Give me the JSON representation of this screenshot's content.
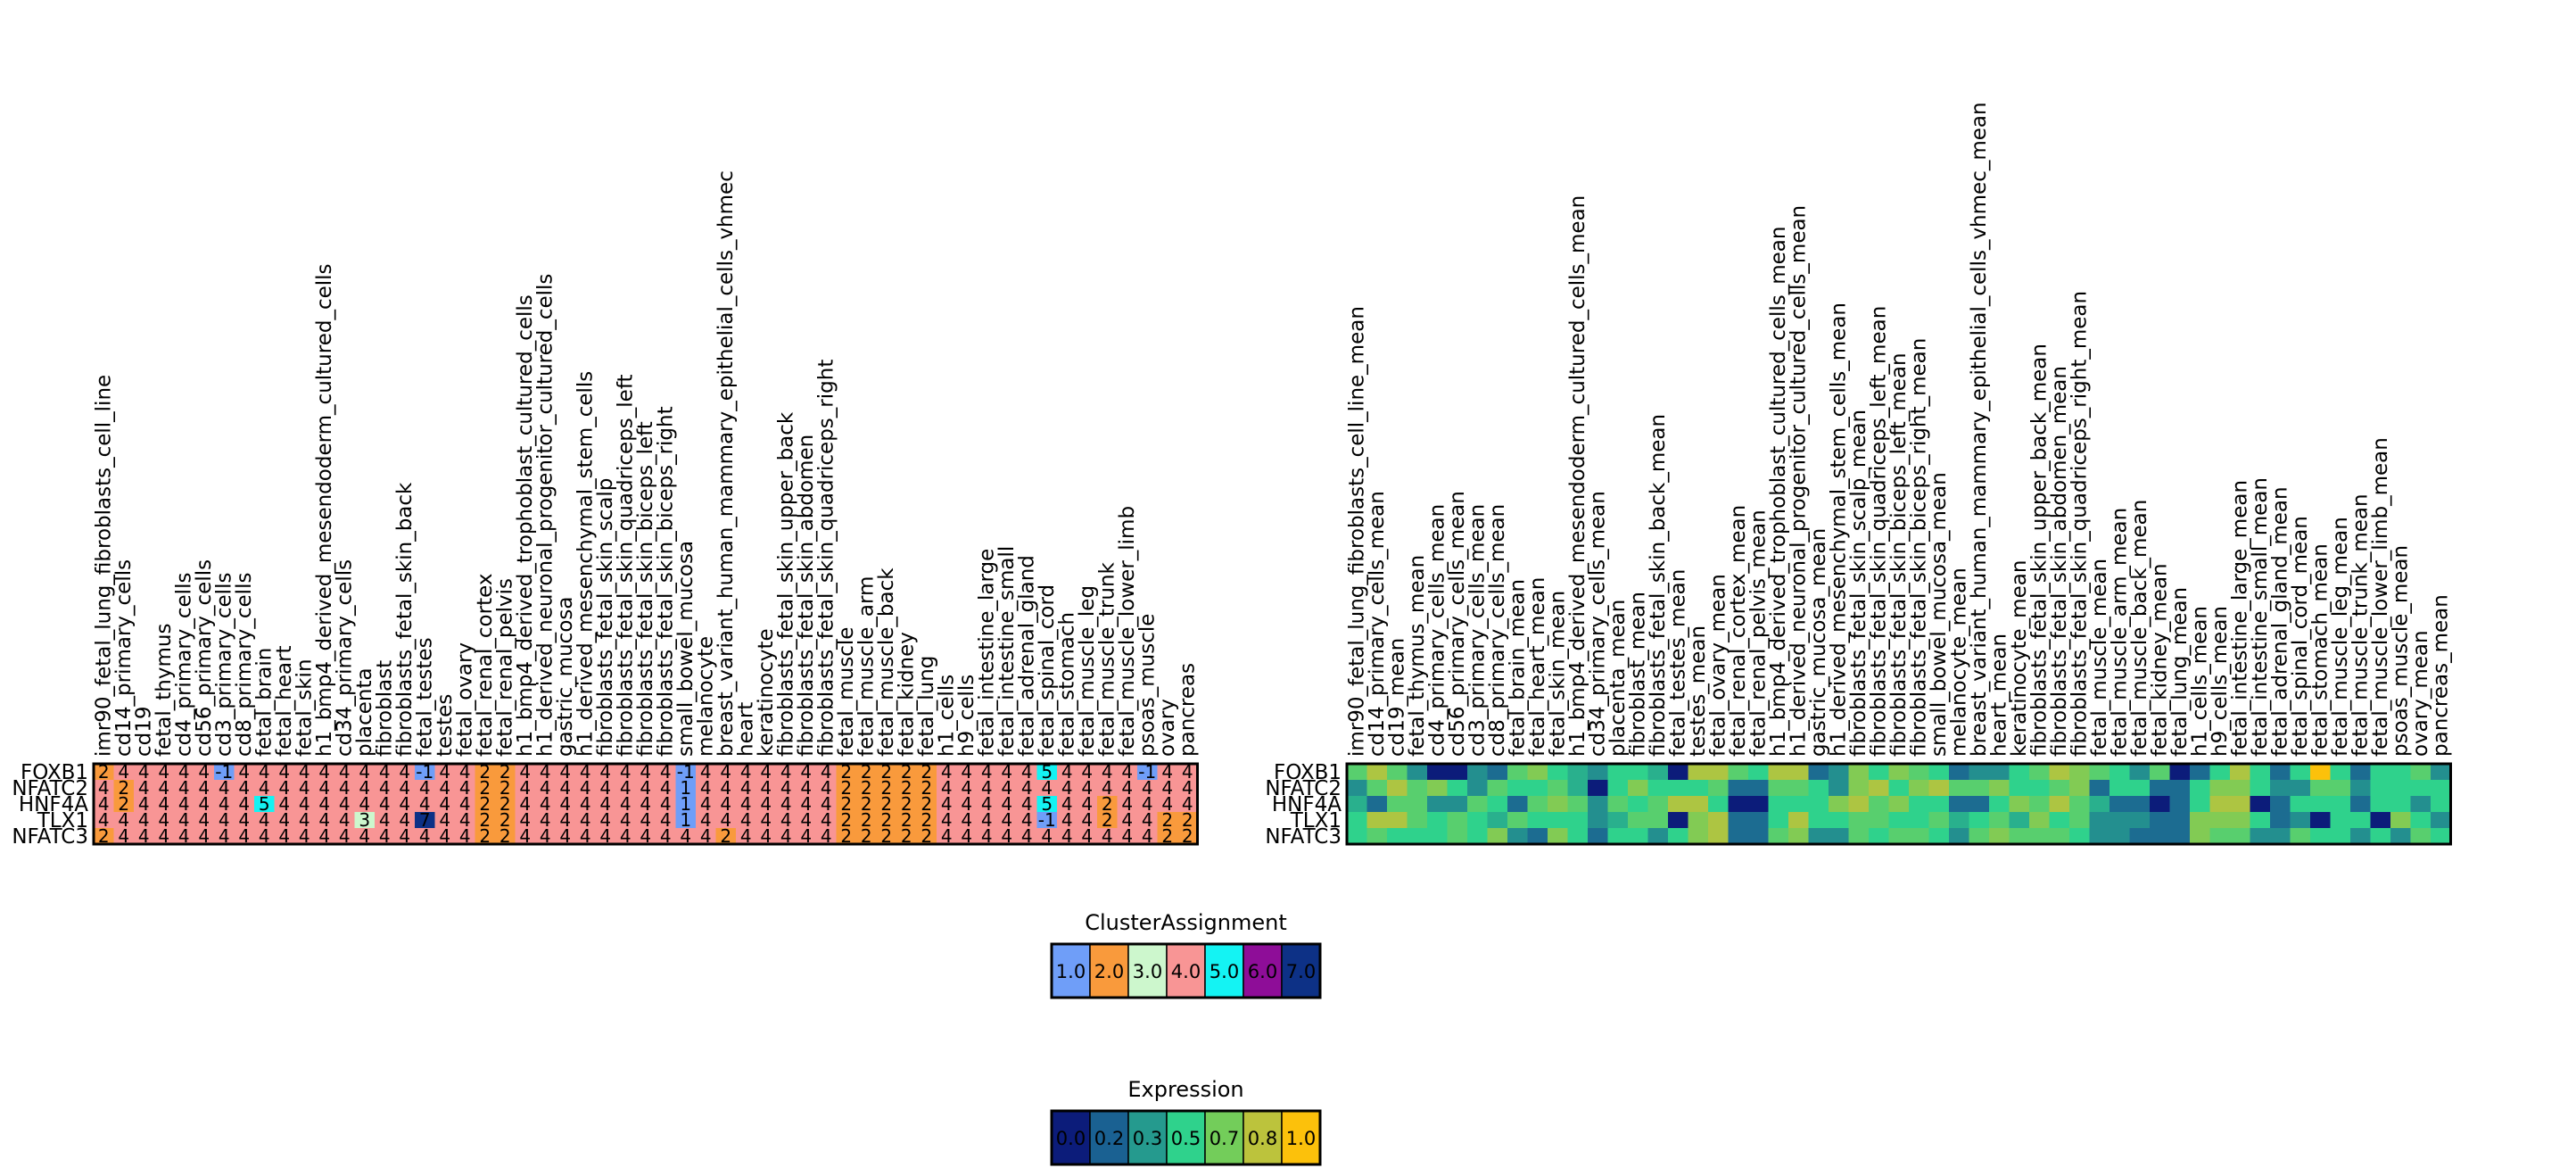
{
  "chart_data": [
    {
      "type": "heatmap",
      "title": "",
      "rows": [
        "FOXB1",
        "NFATC2",
        "HNF4A",
        "TLX1",
        "NFATC3"
      ],
      "columns": [
        "imr90_fetal_lung_fibroblasts_cell_line",
        "cd14_primary_cells",
        "cd19",
        "fetal_thymus",
        "cd4_primary_cells",
        "cd56_primary_cells",
        "cd3_primary_cells",
        "cd8_primary_cells",
        "fetal_brain",
        "fetal_heart",
        "fetal_skin",
        "h1_bmp4_derived_mesendoderm_cultured_cells",
        "cd34_primary_cells",
        "placenta",
        "fibroblast",
        "fibroblasts_fetal_skin_back",
        "fetal_testes",
        "testes",
        "fetal_ovary",
        "fetal_renal_cortex",
        "fetal_renal_pelvis",
        "h1_bmp4_derived_trophoblast_cultured_cells",
        "h1_derived_neuronal_progenitor_cultured_cells",
        "gastric_mucosa",
        "h1_derived_mesenchymal_stem_cells",
        "fibroblasts_fetal_skin_scalp",
        "fibroblasts_fetal_skin_quadriceps_left",
        "fibroblasts_fetal_skin_biceps_left",
        "fibroblasts_fetal_skin_biceps_right",
        "small_bowel_mucosa",
        "melanocyte",
        "breast_variant_human_mammary_epithelial_cells_vhmec",
        "heart",
        "keratinocyte",
        "fibroblasts_fetal_skin_upper_back",
        "fibroblasts_fetal_skin_abdomen",
        "fibroblasts_fetal_skin_quadriceps_right",
        "fetal_muscle",
        "fetal_muscle_arm",
        "fetal_muscle_back",
        "fetal_kidney",
        "fetal_lung",
        "h1_cells",
        "h9_cells",
        "fetal_intestine_large",
        "fetal_intestine_small",
        "fetal_adrenal_gland",
        "fetal_spinal_cord",
        "fetal_stomach",
        "fetal_muscle_leg",
        "fetal_muscle_trunk",
        "fetal_muscle_lower_limb",
        "psoas_muscle",
        "ovary",
        "pancreas"
      ],
      "values": [
        [
          2,
          4,
          4,
          4,
          4,
          4,
          -1,
          4,
          4,
          4,
          4,
          4,
          4,
          4,
          4,
          4,
          -1,
          4,
          4,
          2,
          2,
          4,
          4,
          4,
          4,
          4,
          4,
          4,
          4,
          -1,
          4,
          4,
          4,
          4,
          4,
          4,
          4,
          2,
          2,
          2,
          2,
          2,
          4,
          4,
          4,
          4,
          4,
          5,
          4,
          4,
          4,
          4,
          -1,
          4,
          4
        ],
        [
          4,
          2,
          4,
          4,
          4,
          4,
          4,
          4,
          4,
          4,
          4,
          4,
          4,
          4,
          4,
          4,
          4,
          4,
          4,
          2,
          2,
          4,
          4,
          4,
          4,
          4,
          4,
          4,
          4,
          1,
          4,
          4,
          4,
          4,
          4,
          4,
          4,
          2,
          2,
          2,
          2,
          2,
          4,
          4,
          4,
          4,
          4,
          4,
          4,
          4,
          4,
          4,
          4,
          4,
          4
        ],
        [
          4,
          2,
          4,
          4,
          4,
          4,
          4,
          4,
          5,
          4,
          4,
          4,
          4,
          4,
          4,
          4,
          4,
          4,
          4,
          2,
          2,
          4,
          4,
          4,
          4,
          4,
          4,
          4,
          4,
          1,
          4,
          4,
          4,
          4,
          4,
          4,
          4,
          2,
          2,
          2,
          2,
          2,
          4,
          4,
          4,
          4,
          4,
          5,
          4,
          4,
          2,
          4,
          4,
          4,
          4
        ],
        [
          4,
          4,
          4,
          4,
          4,
          4,
          4,
          4,
          4,
          4,
          4,
          4,
          4,
          3,
          4,
          4,
          7,
          4,
          4,
          2,
          2,
          4,
          4,
          4,
          4,
          4,
          4,
          4,
          4,
          1,
          4,
          4,
          4,
          4,
          4,
          4,
          4,
          2,
          2,
          2,
          2,
          2,
          4,
          4,
          4,
          4,
          4,
          -1,
          4,
          4,
          2,
          4,
          4,
          2,
          2
        ],
        [
          2,
          4,
          4,
          4,
          4,
          4,
          4,
          4,
          4,
          4,
          4,
          4,
          4,
          4,
          4,
          4,
          4,
          4,
          4,
          2,
          2,
          4,
          4,
          4,
          4,
          4,
          4,
          4,
          4,
          4,
          4,
          2,
          4,
          4,
          4,
          4,
          4,
          2,
          2,
          2,
          2,
          2,
          4,
          4,
          4,
          4,
          4,
          4,
          4,
          4,
          4,
          4,
          4,
          2,
          2
        ]
      ],
      "value_labels": [
        [
          "2",
          "4",
          "4",
          "4",
          "4",
          "4",
          "-1",
          "4",
          "4",
          "4",
          "4",
          "4",
          "4",
          "4",
          "4",
          "4",
          "-1",
          "4",
          "4",
          "2",
          "2",
          "4",
          "4",
          "4",
          "4",
          "4",
          "4",
          "4",
          "4",
          "-1",
          "4",
          "4",
          "4",
          "4",
          "4",
          "4",
          "4",
          "2",
          "2",
          "2",
          "2",
          "2",
          "4",
          "4",
          "4",
          "4",
          "4",
          "5",
          "4",
          "4",
          "4",
          "4",
          "-1",
          "4",
          "4"
        ],
        [
          "4",
          "2",
          "4",
          "4",
          "4",
          "4",
          "4",
          "4",
          "4",
          "4",
          "4",
          "4",
          "4",
          "4",
          "4",
          "4",
          "4",
          "4",
          "4",
          "2",
          "2",
          "4",
          "4",
          "4",
          "4",
          "4",
          "4",
          "4",
          "4",
          "1",
          "4",
          "4",
          "4",
          "4",
          "4",
          "4",
          "4",
          "2",
          "2",
          "2",
          "2",
          "2",
          "4",
          "4",
          "4",
          "4",
          "4",
          "4",
          "4",
          "4",
          "4",
          "4",
          "4",
          "4",
          "4"
        ],
        [
          "4",
          "2",
          "4",
          "4",
          "4",
          "4",
          "4",
          "4",
          "5",
          "4",
          "4",
          "4",
          "4",
          "4",
          "4",
          "4",
          "4",
          "4",
          "4",
          "2",
          "2",
          "4",
          "4",
          "4",
          "4",
          "4",
          "4",
          "4",
          "4",
          "1",
          "4",
          "4",
          "4",
          "4",
          "4",
          "4",
          "4",
          "2",
          "2",
          "2",
          "2",
          "2",
          "4",
          "4",
          "4",
          "4",
          "4",
          "5",
          "4",
          "4",
          "2",
          "4",
          "4",
          "4",
          "4"
        ],
        [
          "4",
          "4",
          "4",
          "4",
          "4",
          "4",
          "4",
          "4",
          "4",
          "4",
          "4",
          "4",
          "4",
          "3",
          "4",
          "4",
          "7",
          "4",
          "4",
          "2",
          "2",
          "4",
          "4",
          "4",
          "4",
          "4",
          "4",
          "4",
          "4",
          "1",
          "4",
          "4",
          "4",
          "4",
          "4",
          "4",
          "4",
          "2",
          "2",
          "2",
          "2",
          "2",
          "4",
          "4",
          "4",
          "4",
          "4",
          "-1",
          "4",
          "4",
          "2",
          "4",
          "4",
          "2",
          "2"
        ],
        [
          "2",
          "4",
          "4",
          "4",
          "4",
          "4",
          "4",
          "4",
          "4",
          "4",
          "4",
          "4",
          "4",
          "4",
          "4",
          "4",
          "4",
          "4",
          "4",
          "2",
          "2",
          "4",
          "4",
          "4",
          "4",
          "4",
          "4",
          "4",
          "4",
          "4",
          "4",
          "2",
          "4",
          "4",
          "4",
          "4",
          "4",
          "2",
          "2",
          "2",
          "2",
          "2",
          "4",
          "4",
          "4",
          "4",
          "4",
          "4",
          "4",
          "4",
          "4",
          "4",
          "4",
          "2",
          "2"
        ]
      ],
      "legend": {
        "title": "ClusterAssignment",
        "labels": [
          "1.0",
          "2.0",
          "3.0",
          "4.0",
          "5.0",
          "6.0",
          "7.0"
        ],
        "colors": [
          "#6f9ef8",
          "#f99a3c",
          "#cdf7cd",
          "#f89595",
          "#14f3f3",
          "#8e0d98",
          "#0d3186"
        ],
        "label_colors": [
          "#000000",
          "#000000",
          "#000000",
          "#000000",
          "#000000",
          "#ffffff",
          "#ffffff"
        ]
      },
      "cell_colors": {
        "-1": "#6f9ef8",
        "1": "#6f9ef8",
        "2": "#f99a3c",
        "3": "#cdf7cd",
        "4": "#f89595",
        "5": "#14f3f3",
        "6": "#8e0d98",
        "7": "#0d3186"
      }
    },
    {
      "type": "heatmap",
      "title": "",
      "rows": [
        "FOXB1",
        "NFATC2",
        "HNF4A",
        "TLX1",
        "NFATC3"
      ],
      "columns": [
        "imr90_fetal_lung_fibroblasts_cell_line_mean",
        "cd14_primary_cells_mean",
        "cd19_mean",
        "fetal_thymus_mean",
        "cd4_primary_cells_mean",
        "cd56_primary_cells_mean",
        "cd3_primary_cells_mean",
        "cd8_primary_cells_mean",
        "fetal_brain_mean",
        "fetal_heart_mean",
        "fetal_skin_mean",
        "h1_bmp4_derived_mesendoderm_cultured_cells_mean",
        "cd34_primary_cells_mean",
        "placenta_mean",
        "fibroblast_mean",
        "fibroblasts_fetal_skin_back_mean",
        "fetal_testes_mean",
        "testes_mean",
        "fetal_ovary_mean",
        "fetal_renal_cortex_mean",
        "fetal_renal_pelvis_mean",
        "h1_bmp4_derived_trophoblast_cultured_cells_mean",
        "h1_derived_neuronal_progenitor_cultured_cells_mean",
        "gastric_mucosa_mean",
        "h1_derived_mesenchymal_stem_cells_mean",
        "fibroblasts_fetal_skin_scalp_mean",
        "fibroblasts_fetal_skin_quadriceps_left_mean",
        "fibroblasts_fetal_skin_biceps_left_mean",
        "fibroblasts_fetal_skin_biceps_right_mean",
        "small_bowel_mucosa_mean",
        "melanocyte_mean",
        "breast_variant_human_mammary_epithelial_cells_vhmec_mean",
        "heart_mean",
        "keratinocyte_mean",
        "fibroblasts_fetal_skin_upper_back_mean",
        "fibroblasts_fetal_skin_abdomen_mean",
        "fibroblasts_fetal_skin_quadriceps_right_mean",
        "fetal_muscle_mean",
        "fetal_muscle_arm_mean",
        "fetal_muscle_back_mean",
        "fetal_kidney_mean",
        "fetal_lung_mean",
        "h1_cells_mean",
        "h9_cells_mean",
        "fetal_intestine_large_mean",
        "fetal_intestine_small_mean",
        "fetal_adrenal_gland_mean",
        "fetal_spinal_cord_mean",
        "fetal_stomach_mean",
        "fetal_muscle_leg_mean",
        "fetal_muscle_trunk_mean",
        "fetal_muscle_lower_limb_mean",
        "psoas_muscle_mean",
        "ovary_mean",
        "pancreas_mean"
      ],
      "values": [
        [
          0.6,
          0.8,
          0.6,
          0.3,
          0.0,
          0.0,
          0.3,
          0.2,
          0.6,
          0.7,
          0.5,
          0.4,
          0.3,
          0.5,
          0.5,
          0.4,
          0.0,
          0.8,
          0.8,
          0.6,
          0.5,
          0.8,
          0.8,
          0.2,
          0.3,
          0.7,
          0.5,
          0.7,
          0.6,
          0.5,
          0.2,
          0.3,
          0.3,
          0.5,
          0.6,
          0.8,
          0.7,
          0.6,
          0.5,
          0.3,
          0.6,
          0.0,
          0.2,
          0.5,
          0.8,
          0.5,
          0.2,
          0.5,
          1.0,
          0.5,
          0.2,
          0.5,
          0.5,
          0.6,
          0.3
        ],
        [
          0.3,
          0.6,
          0.8,
          0.6,
          0.7,
          0.5,
          0.3,
          0.6,
          0.5,
          0.5,
          0.6,
          0.4,
          0.0,
          0.5,
          0.7,
          0.5,
          0.5,
          0.5,
          0.6,
          0.2,
          0.2,
          0.6,
          0.6,
          0.5,
          0.3,
          0.7,
          0.8,
          0.5,
          0.7,
          0.8,
          0.6,
          0.6,
          0.7,
          0.5,
          0.5,
          0.6,
          0.7,
          0.2,
          0.5,
          0.5,
          0.2,
          0.2,
          0.5,
          0.7,
          0.7,
          0.5,
          0.3,
          0.3,
          0.6,
          0.6,
          0.3,
          0.5,
          0.5,
          0.5,
          0.5
        ],
        [
          0.4,
          0.2,
          0.6,
          0.6,
          0.3,
          0.3,
          0.6,
          0.5,
          0.2,
          0.6,
          0.7,
          0.6,
          0.3,
          0.6,
          0.5,
          0.6,
          0.8,
          0.8,
          0.5,
          0.0,
          0.0,
          0.5,
          0.5,
          0.5,
          0.7,
          0.8,
          0.6,
          0.7,
          0.5,
          0.5,
          0.2,
          0.2,
          0.5,
          0.7,
          0.6,
          0.8,
          0.6,
          0.4,
          0.2,
          0.2,
          0.0,
          0.2,
          0.5,
          0.8,
          0.8,
          0.0,
          0.2,
          0.5,
          0.5,
          0.5,
          0.2,
          0.5,
          0.5,
          0.3,
          0.5
        ],
        [
          0.5,
          0.8,
          0.8,
          0.6,
          0.5,
          0.6,
          0.5,
          0.4,
          0.6,
          0.5,
          0.5,
          0.5,
          0.3,
          0.4,
          0.6,
          0.6,
          0.0,
          0.7,
          0.8,
          0.2,
          0.2,
          0.5,
          0.8,
          0.5,
          0.5,
          0.6,
          0.6,
          0.5,
          0.5,
          0.6,
          0.4,
          0.5,
          0.6,
          0.4,
          0.7,
          0.5,
          0.6,
          0.3,
          0.3,
          0.3,
          0.2,
          0.2,
          0.7,
          0.7,
          0.7,
          0.5,
          0.2,
          0.3,
          0.0,
          0.5,
          0.5,
          0.0,
          0.7,
          0.5,
          0.3
        ],
        [
          0.5,
          0.6,
          0.5,
          0.5,
          0.5,
          0.6,
          0.5,
          0.7,
          0.3,
          0.2,
          0.7,
          0.5,
          0.2,
          0.5,
          0.5,
          0.3,
          0.5,
          0.7,
          0.8,
          0.2,
          0.2,
          0.6,
          0.7,
          0.3,
          0.3,
          0.6,
          0.5,
          0.6,
          0.6,
          0.5,
          0.3,
          0.6,
          0.7,
          0.6,
          0.6,
          0.6,
          0.5,
          0.3,
          0.3,
          0.2,
          0.2,
          0.2,
          0.7,
          0.6,
          0.6,
          0.3,
          0.3,
          0.6,
          0.5,
          0.5,
          0.3,
          0.5,
          0.3,
          0.6,
          0.5
        ]
      ],
      "legend": {
        "title": "Expression",
        "labels": [
          "0.0",
          "0.2",
          "0.3",
          "0.5",
          "0.7",
          "0.8",
          "1.0"
        ],
        "colors": [
          "#0c1c7a",
          "#1a6192",
          "#259a8e",
          "#2fd28c",
          "#73cd5a",
          "#bcc33c",
          "#fcc10b"
        ],
        "label_colors": [
          "#ffffff",
          "#ffffff",
          "#ffffff",
          "#000000",
          "#000000",
          "#000000",
          "#000000"
        ]
      }
    }
  ]
}
